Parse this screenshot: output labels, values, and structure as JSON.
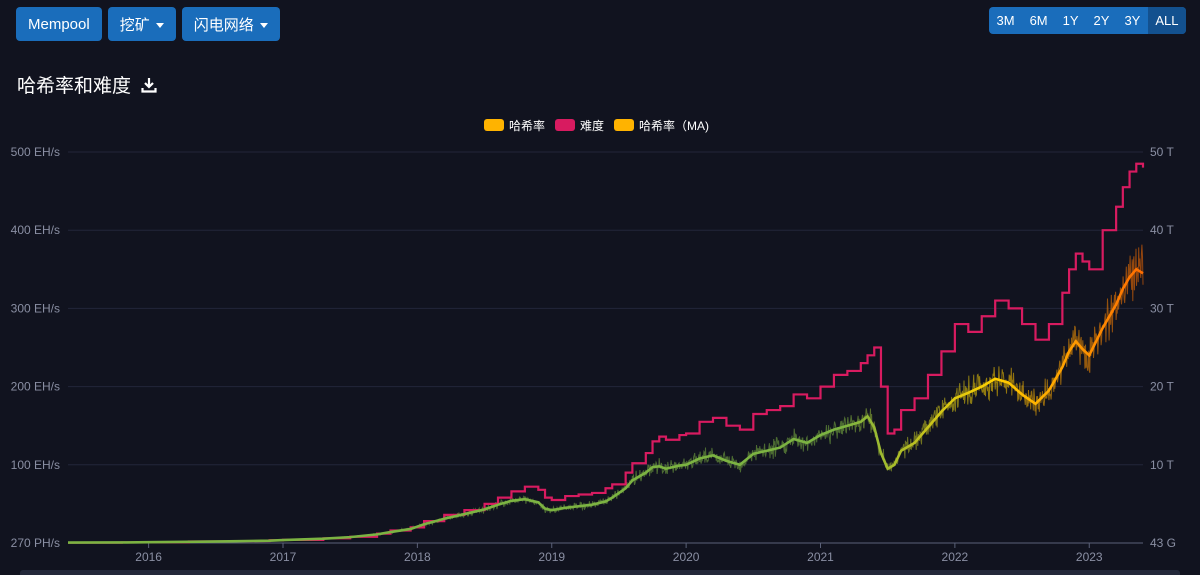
{
  "nav": {
    "mempool": "Mempool",
    "mining": "挖矿",
    "lightning": "闪电网络"
  },
  "ranges": [
    "3M",
    "6M",
    "1Y",
    "2Y",
    "3Y",
    "ALL"
  ],
  "active_range": "ALL",
  "page_title": "哈希率和难度",
  "colors": {
    "background": "#11131f",
    "hashrate_legend": "#ffb300",
    "difficulty": "#d81b60",
    "hashrate_ma_legend": "#ffb300",
    "hashrate_low": "#7cb342",
    "hashrate_high": "#ff6d00",
    "button": "#1a6dbb"
  },
  "chart_data": {
    "type": "line",
    "legend": [
      "哈希率",
      "难度",
      "哈希率（MA)"
    ],
    "legend_position": "top-center",
    "grid": true,
    "x_ticks": [
      "2016",
      "2017",
      "2018",
      "2019",
      "2020",
      "2021",
      "2022",
      "2023"
    ],
    "x_range": [
      2015.4,
      2023.4
    ],
    "y_left_ticks": [
      "270 PH/s",
      "100 EH/s",
      "200 EH/s",
      "300 EH/s",
      "400 EH/s",
      "500 EH/s"
    ],
    "y_left_range": [
      0,
      500
    ],
    "y_left_unit": "EH/s",
    "y_right_ticks": [
      "43 G",
      "10 T",
      "20 T",
      "30 T",
      "40 T",
      "50 T"
    ],
    "y_right_range": [
      0,
      50
    ],
    "y_right_unit": "T",
    "series": [
      {
        "name": "难度",
        "axis": "right",
        "x": [
          2015.4,
          2015.8,
          2016.0,
          2016.3,
          2016.6,
          2016.9,
          2017.0,
          2017.3,
          2017.5,
          2017.7,
          2017.8,
          2017.95,
          2018.05,
          2018.2,
          2018.35,
          2018.5,
          2018.6,
          2018.7,
          2018.8,
          2018.9,
          2018.95,
          2019.0,
          2019.1,
          2019.2,
          2019.3,
          2019.4,
          2019.45,
          2019.55,
          2019.6,
          2019.7,
          2019.75,
          2019.8,
          2019.85,
          2019.95,
          2020.0,
          2020.1,
          2020.2,
          2020.3,
          2020.4,
          2020.5,
          2020.6,
          2020.7,
          2020.8,
          2020.9,
          2021.0,
          2021.1,
          2021.2,
          2021.3,
          2021.35,
          2021.4,
          2021.45,
          2021.5,
          2021.55,
          2021.6,
          2021.7,
          2021.8,
          2021.9,
          2022.0,
          2022.1,
          2022.2,
          2022.3,
          2022.4,
          2022.5,
          2022.6,
          2022.7,
          2022.8,
          2022.85,
          2022.9,
          2022.95,
          2023.0,
          2023.1,
          2023.2,
          2023.25,
          2023.3,
          2023.35,
          2023.4
        ],
        "values": [
          0.05,
          0.07,
          0.1,
          0.2,
          0.25,
          0.35,
          0.4,
          0.6,
          0.8,
          1.2,
          1.6,
          2.0,
          2.8,
          3.6,
          4.2,
          5.0,
          5.8,
          6.6,
          7.2,
          6.8,
          5.8,
          5.5,
          6.0,
          6.2,
          6.4,
          7.0,
          7.5,
          9.0,
          10.2,
          11.5,
          13.0,
          13.6,
          13.2,
          13.8,
          14.0,
          15.5,
          16.0,
          15.0,
          14.5,
          16.5,
          17.0,
          17.5,
          19.0,
          18.5,
          20.0,
          21.5,
          22.0,
          23.0,
          24.0,
          25.0,
          20.0,
          14.0,
          14.5,
          17.0,
          18.5,
          21.5,
          24.5,
          28.0,
          27.0,
          29.0,
          31.0,
          30.0,
          28.0,
          26.0,
          28.0,
          32.0,
          35.0,
          37.0,
          36.0,
          35.0,
          40.0,
          43.0,
          45.5,
          47.5,
          48.5,
          48.0
        ]
      },
      {
        "name": "哈希率（MA)",
        "axis": "left",
        "x": [
          2015.4,
          2015.8,
          2016.0,
          2016.3,
          2016.6,
          2016.9,
          2017.0,
          2017.3,
          2017.5,
          2017.7,
          2017.8,
          2017.95,
          2018.05,
          2018.2,
          2018.35,
          2018.5,
          2018.6,
          2018.7,
          2018.8,
          2018.9,
          2018.95,
          2019.0,
          2019.1,
          2019.2,
          2019.3,
          2019.4,
          2019.45,
          2019.55,
          2019.6,
          2019.7,
          2019.75,
          2019.8,
          2019.85,
          2019.95,
          2020.0,
          2020.1,
          2020.2,
          2020.3,
          2020.4,
          2020.5,
          2020.6,
          2020.7,
          2020.8,
          2020.9,
          2021.0,
          2021.1,
          2021.2,
          2021.3,
          2021.35,
          2021.4,
          2021.45,
          2021.5,
          2021.55,
          2021.6,
          2021.7,
          2021.8,
          2021.9,
          2022.0,
          2022.1,
          2022.2,
          2022.3,
          2022.4,
          2022.5,
          2022.6,
          2022.7,
          2022.8,
          2022.85,
          2022.9,
          2022.95,
          2023.0,
          2023.1,
          2023.2,
          2023.25,
          2023.3,
          2023.35,
          2023.4
        ],
        "values": [
          0.5,
          0.7,
          1.0,
          1.5,
          2.2,
          3.0,
          3.8,
          5.5,
          7.5,
          11,
          14,
          18,
          24,
          31,
          37,
          43,
          49,
          54,
          56,
          52,
          44,
          42,
          45,
          47,
          49,
          53,
          58,
          70,
          80,
          90,
          97,
          98,
          95,
          99,
          100,
          108,
          112,
          105,
          100,
          114,
          118,
          122,
          133,
          128,
          138,
          145,
          150,
          155,
          162,
          148,
          115,
          95,
          100,
          118,
          128,
          148,
          168,
          185,
          192,
          200,
          210,
          205,
          190,
          178,
          195,
          225,
          245,
          258,
          248,
          240,
          275,
          305,
          325,
          340,
          350,
          345
        ]
      }
    ]
  }
}
